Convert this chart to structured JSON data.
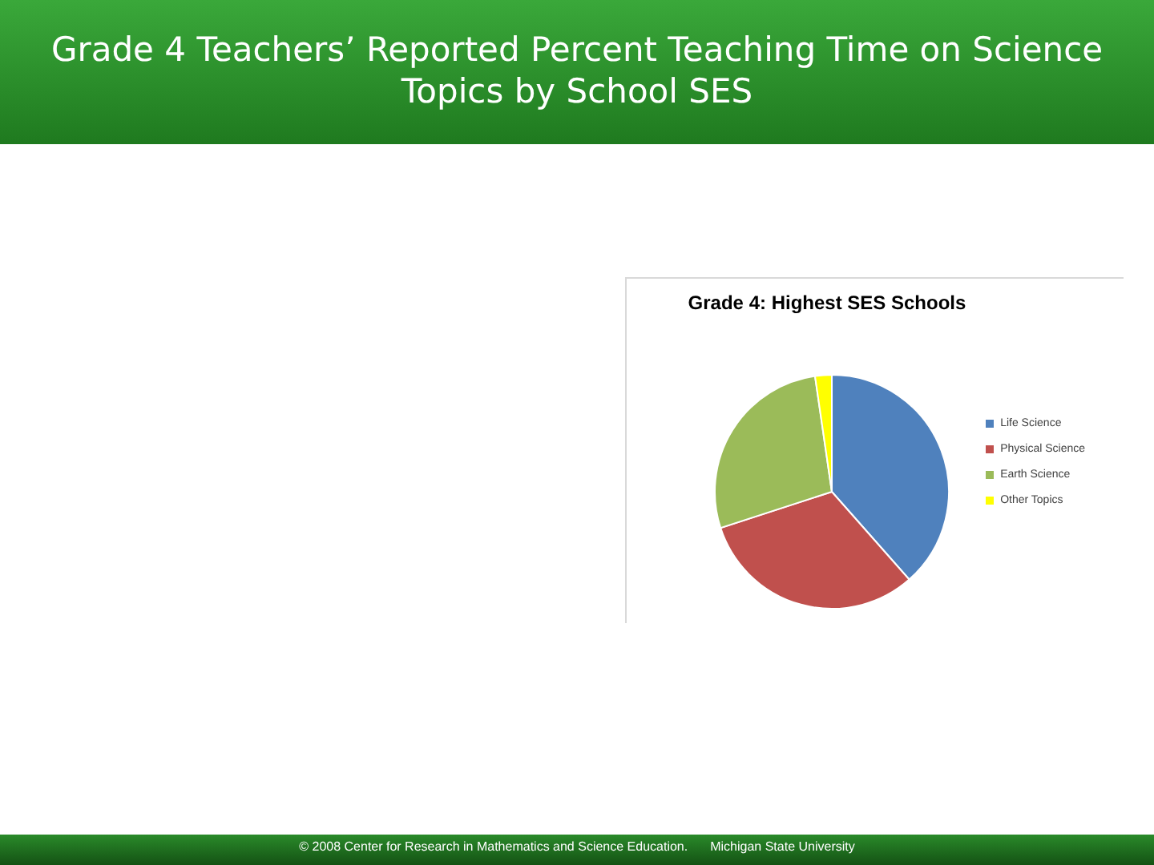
{
  "chart_data": {
    "type": "pie",
    "title": "Grade 4 Teachers’ Reported Percent Teaching Time on Science Topics by School SES",
    "subtitle": "Grade 4: Highest SES Schools",
    "categories": [
      "Life Science",
      "Physical Science",
      "Earth Science",
      "Other Topics"
    ],
    "values": [
      38.5,
      31.5,
      27.7,
      2.3
    ],
    "colors": [
      "#4f81bd",
      "#c0504d",
      "#9bbb59",
      "#ffff00"
    ],
    "legend": "right",
    "annotations": [
      "© 2008 Center for Research in Mathematics and Science Education.",
      "Michigan State University"
    ]
  }
}
